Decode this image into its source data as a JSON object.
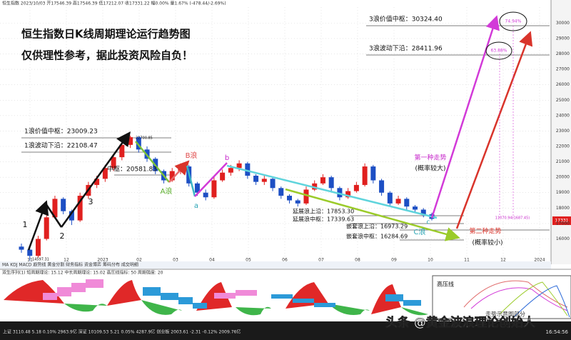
{
  "header": {
    "info": "恒生指数 2023/10/03 开17546.39 高17546.39 低17212.07 收17331.22 幅0.00% 量1.67% (-478.44/-2.69%)"
  },
  "title_lines": [
    "恒生指数日K线周期理论运行趋势图",
    "仅供理性参考，据此投资风险自负！"
  ],
  "chart_data": {
    "type": "candlestick",
    "ylim": [
      14400,
      31500
    ],
    "yticks": [
      16000,
      17000,
      18000,
      19000,
      20000,
      21000,
      22000,
      23000,
      24000,
      25000,
      26000,
      27000,
      28000,
      29000,
      30000
    ],
    "grid": true,
    "up_color": "#e0201f",
    "down_color": "#1d4fc4",
    "x_labels": [
      "11",
      "12",
      "2023",
      "02",
      "03",
      "04",
      "05",
      "06",
      "07",
      "08",
      "09",
      "10",
      "11",
      "12",
      "2024"
    ],
    "open": [
      15500,
      15300,
      14900,
      16000,
      17400,
      18600,
      17800,
      17200,
      18800,
      19500,
      19900,
      20600,
      21300,
      22100,
      22600,
      21800,
      21200,
      20400,
      19800,
      20400,
      20700,
      19600,
      19000,
      18700,
      19800,
      20300,
      20600,
      20900,
      20100,
      19700,
      19900,
      19300,
      18800,
      18500,
      18300,
      19200,
      19600,
      20000,
      19300,
      18700,
      19100,
      19500,
      20700,
      19800,
      19000,
      18300,
      18600,
      18100,
      17900,
      17600
    ],
    "high": [
      15700,
      15400,
      16200,
      17600,
      18800,
      18700,
      17900,
      19000,
      19700,
      20100,
      20800,
      21500,
      22300,
      22700,
      22650,
      22000,
      21300,
      20500,
      20600,
      20900,
      20800,
      19700,
      19200,
      20000,
      20500,
      20800,
      21100,
      21000,
      20200,
      20100,
      20000,
      19400,
      18900,
      18600,
      19400,
      19800,
      20200,
      20100,
      19400,
      19300,
      19700,
      20900,
      20800,
      19900,
      19100,
      18800,
      18700,
      18200,
      18000,
      17700
    ],
    "low": [
      15100,
      14597,
      14800,
      15900,
      17300,
      17600,
      16900,
      17100,
      18600,
      19300,
      19700,
      20400,
      21100,
      21900,
      21600,
      21000,
      20200,
      19600,
      19700,
      20200,
      19400,
      18800,
      18500,
      18600,
      19700,
      20100,
      20400,
      19900,
      19500,
      19500,
      19100,
      18600,
      18300,
      18100,
      18200,
      19100,
      19500,
      19100,
      18500,
      18600,
      19000,
      19400,
      19600,
      18800,
      18100,
      18200,
      17900,
      17700,
      17400,
      17200
    ],
    "close": [
      15300,
      14900,
      16000,
      17400,
      18600,
      17800,
      17200,
      18800,
      19500,
      19900,
      20600,
      21300,
      22100,
      22600,
      21800,
      21200,
      20400,
      19800,
      20400,
      20700,
      19600,
      19000,
      18700,
      19800,
      20300,
      20600,
      20900,
      20100,
      19700,
      19900,
      19300,
      18800,
      18500,
      18300,
      19200,
      19600,
      20000,
      19300,
      18700,
      19100,
      19500,
      20700,
      19800,
      19000,
      18300,
      18600,
      18100,
      17900,
      17600,
      17300
    ]
  },
  "annotations": [
    "3浪价值中枢：30324.40",
    "3浪波动下沿：28411.96",
    "74.94%",
    "63.88%",
    "1浪价值中枢：23009.23",
    "1浪波动下沿：22108.47",
    "中枢：20581.83",
    "22700.85",
    "14597.31",
    "延展浪上沿：17853.30",
    "延展浪中枢：17339.63",
    "嵌套浪上沿：16973.29",
    "嵌套浪中枢：16284.69",
    "1",
    "2",
    "3",
    "A浪",
    "a",
    "B浪",
    "b",
    "C浪",
    "c",
    "第一种走势",
    "(概率较大)",
    "第二种走势",
    "(概率较小)",
    "11070.94(1687.45)",
    "17331"
  ],
  "toolbar": "MA KDJ MACD 趋势线 黄金分割 财务指标 资金博弈 筹码分布 成交明细",
  "indicator": {
    "title": "双生序列(1)  短周期理论: 15.12  中长周期理论: 15.02  高压线指标: 50  周期强度: 20",
    "inset_title": "高压线",
    "inset_note": "走势示意图部分"
  },
  "status_bar": "上证 3110.48  5.18  0.10%  2963.9亿   深证 10109.53  5.21  0.05%  4287.9亿   创业板 2003.61  -2.31  -0.12%  2009.76亿",
  "clock": "16:54:56",
  "watermark": "头条 @黄金波浪理论创始人"
}
